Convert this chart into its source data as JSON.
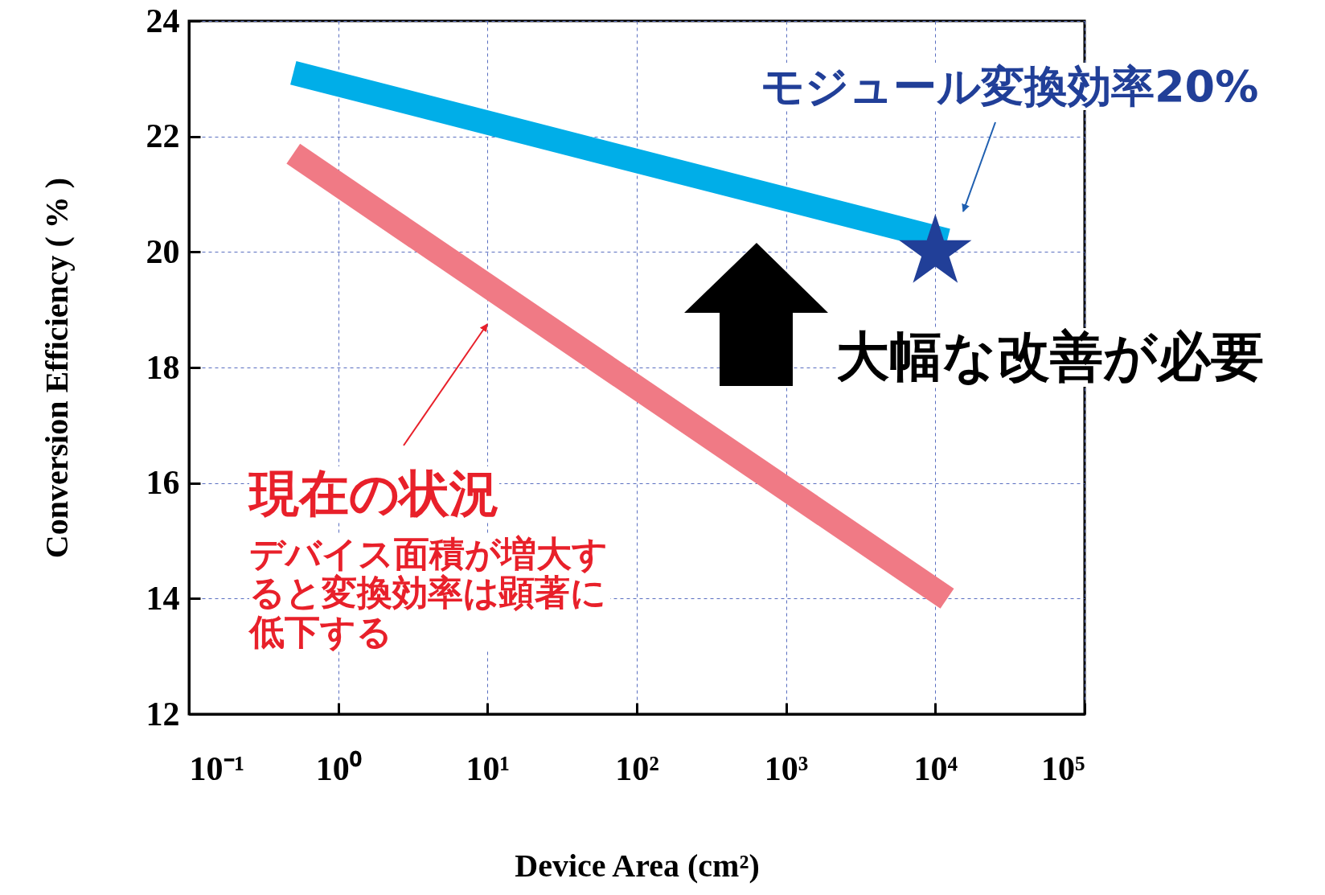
{
  "chart_data": {
    "type": "line",
    "xlabel": "Device Area (cm²)",
    "ylabel": "Conversion Efficiency ( % )",
    "log": "x",
    "grid": true,
    "xlim": [
      0.1,
      100000
    ],
    "ylim": [
      12,
      24
    ],
    "xticks": [
      {
        "value": 0.1,
        "label": "10⁻¹"
      },
      {
        "value": 1,
        "label": "10⁰"
      },
      {
        "value": 10,
        "label": "10¹"
      },
      {
        "value": 100,
        "label": "10²"
      },
      {
        "value": 1000,
        "label": "10³"
      },
      {
        "value": 10000,
        "label": "10⁴"
      },
      {
        "value": 100000,
        "label": "10⁵"
      }
    ],
    "yticks": [
      12,
      14,
      16,
      18,
      20,
      22,
      24
    ],
    "series": [
      {
        "type": "line",
        "color": "#00aee8",
        "x": [
          0.5,
          12000
        ],
        "values": [
          23.1,
          20.2
        ]
      },
      {
        "type": "line",
        "color": "#f07a85",
        "x": [
          0.5,
          12000
        ],
        "values": [
          21.7,
          14.0
        ]
      },
      {
        "type": "scatter",
        "marker": "star",
        "color": "#213f98",
        "x": [
          10000
        ],
        "values": [
          20
        ]
      }
    ],
    "annotations": [
      "モジュール変換効率20%",
      "大幅な改善が必要",
      "現在の状況",
      "デバイス面積が増大すると変換効率は顕著に低下する"
    ]
  }
}
